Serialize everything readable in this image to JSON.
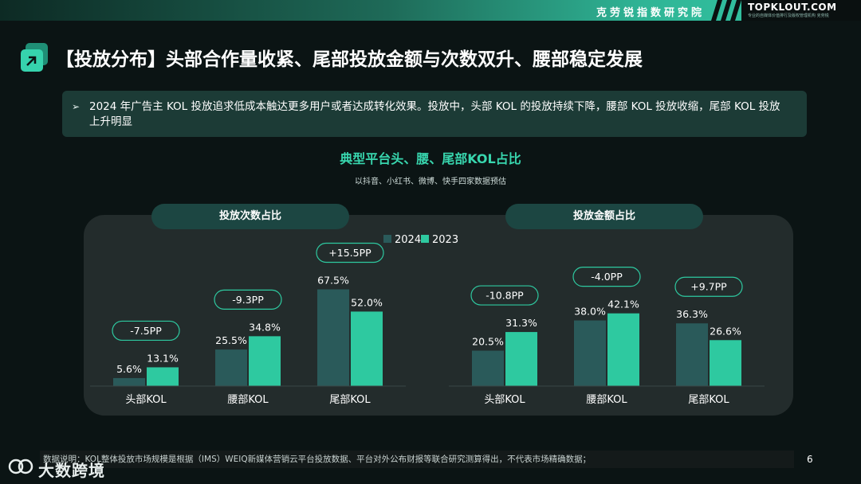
{
  "header": {
    "org": "克劳锐指数研究院",
    "brand": "TOPKLOUT.COM",
    "brand_sub": "专业的自媒体价值排行及版权管理机构 克劳锐"
  },
  "title": "【投放分布】头部合作量收紧、尾部投放金额与次数双升、腰部稳定发展",
  "description": "2024 年广告主 KOL 投放追求低成本触达更多用户或者达成转化效果。投放中，头部 KOL 的投放持续下降，腰部 KOL 投放收缩，尾部 KOL 投放上升明显",
  "chart_section": {
    "title": "典型平台头、腰、尾部KOL占比",
    "subtitle": "以抖音、小红书、微博、快手四家数据预估"
  },
  "colors": {
    "series_2024": "#2a5a5a",
    "series_2023": "#2ec9a0",
    "accent": "#38d6ae",
    "panel": "#232c2c",
    "pill_border": "#2ec9a0"
  },
  "chart_data": [
    {
      "type": "bar",
      "title": "投放次数占比",
      "categories": [
        "头部KOL",
        "腰部KOL",
        "尾部KOL"
      ],
      "series": [
        {
          "name": "2024",
          "values": [
            5.6,
            25.5,
            67.5
          ]
        },
        {
          "name": "2023",
          "values": [
            13.1,
            34.8,
            52.0
          ]
        }
      ],
      "value_labels": {
        "2024": [
          "5.6%",
          "25.5%",
          "67.5%"
        ],
        "2023": [
          "13.1%",
          "34.8%",
          "52.0%"
        ]
      },
      "change_labels": [
        "-7.5PP",
        "-9.3PP",
        "+15.5PP"
      ],
      "ylim": [
        0,
        100
      ],
      "legend": "top-center",
      "grid": false
    },
    {
      "type": "bar",
      "title": "投放金额占比",
      "categories": [
        "头部KOL",
        "腰部KOL",
        "尾部KOL"
      ],
      "series": [
        {
          "name": "2024",
          "values": [
            20.5,
            38.0,
            36.3
          ]
        },
        {
          "name": "2023",
          "values": [
            31.3,
            42.1,
            26.6
          ]
        }
      ],
      "value_labels": {
        "2024": [
          "20.5%",
          "38.0%",
          "36.3%"
        ],
        "2023": [
          "31.3%",
          "42.1%",
          "26.6%"
        ]
      },
      "change_labels": [
        "-10.8PP",
        "-4.0PP",
        "+9.7PP"
      ],
      "ylim": [
        0,
        100
      ],
      "grid": false
    }
  ],
  "footer": {
    "note": "数据说明：KOL整体投放市场规模是根据（IMS）WEIQ新媒体营销云平台投放数据、平台对外公布财报等联合研究测算得出，不代表市场精确数据；",
    "page": "6"
  },
  "watermark": {
    "text": "大数跨境"
  }
}
